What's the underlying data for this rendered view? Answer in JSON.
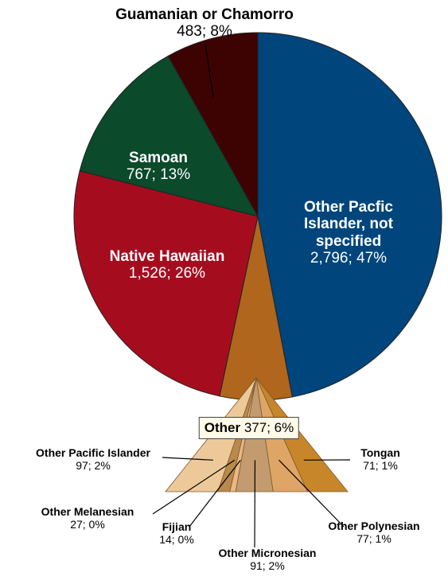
{
  "chart_data": {
    "type": "pie",
    "categories": [
      "Other Pacfic Islander, not specified",
      "Other",
      "Native Hawaiian",
      "Samoan",
      "Guamanian or Chamorro"
    ],
    "values": [
      2796,
      377,
      1526,
      767,
      483
    ],
    "value_labels": [
      "2,796; 47%",
      "377; 6%",
      "1,526; 26%",
      "767; 13%",
      "483; 8%"
    ],
    "colors": [
      "#00457c",
      "#b0661c",
      "#a50d1f",
      "#0b4a2b",
      "#3d0303"
    ],
    "breakdown": {
      "categories": [
        "Tongan",
        "Other Polynesian",
        "Other Micronesian",
        "Fijian",
        "Other Melanesian",
        "Other Pacific Islander"
      ],
      "values": [
        71,
        77,
        91,
        14,
        27,
        97
      ],
      "value_labels": [
        "71; 1%",
        "77; 1%",
        "91; 2%",
        "14; 0%",
        "27; 0%",
        "97; 2%"
      ],
      "colors": [
        "#c8862a",
        "#dfa566",
        "#c39b6e",
        "#e8b784",
        "#b98a4c",
        "#edc99a"
      ]
    }
  }
}
